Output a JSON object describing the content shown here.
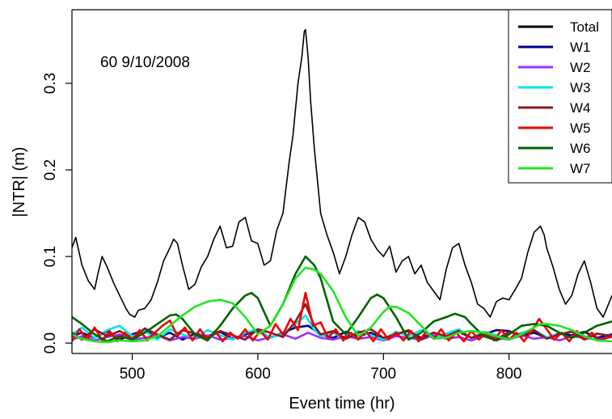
{
  "chart_data": {
    "type": "line",
    "annotation": "60 9/10/2008",
    "xlabel": "Event time (hr)",
    "ylabel": "|NTR| (m)",
    "xlim": [
      452,
      882
    ],
    "ylim": [
      -0.012,
      0.385
    ],
    "xticks": [
      500,
      600,
      700,
      800
    ],
    "xtick_labels": [
      "500",
      "600",
      "700",
      "800"
    ],
    "yticks": [
      0.0,
      0.1,
      0.2,
      0.3
    ],
    "ytick_labels": [
      "0.0",
      "0.1",
      "0.2",
      "0.3"
    ],
    "legend_position": "top-right",
    "series": [
      {
        "name": "Total",
        "color": "#000000",
        "x": [
          452,
          455,
          460,
          465,
          470,
          473,
          476,
          480,
          485,
          490,
          495,
          498,
          502,
          505,
          510,
          515,
          520,
          525,
          530,
          533,
          536,
          540,
          545,
          550,
          555,
          560,
          565,
          570,
          575,
          580,
          585,
          590,
          595,
          600,
          605,
          610,
          615,
          620,
          625,
          628,
          630,
          632,
          635,
          637,
          638,
          640,
          642,
          645,
          648,
          650,
          655,
          660,
          665,
          670,
          675,
          680,
          685,
          690,
          695,
          700,
          705,
          710,
          715,
          720,
          725,
          730,
          735,
          740,
          745,
          750,
          755,
          760,
          765,
          770,
          775,
          780,
          785,
          790,
          795,
          800,
          805,
          810,
          815,
          820,
          825,
          828,
          830,
          835,
          840,
          845,
          850,
          855,
          860,
          865,
          870,
          875,
          882
        ],
        "values": [
          0.11,
          0.122,
          0.09,
          0.072,
          0.062,
          0.082,
          0.1,
          0.088,
          0.07,
          0.055,
          0.04,
          0.033,
          0.03,
          0.038,
          0.04,
          0.05,
          0.07,
          0.095,
          0.11,
          0.12,
          0.115,
          0.09,
          0.062,
          0.068,
          0.088,
          0.1,
          0.12,
          0.135,
          0.11,
          0.112,
          0.14,
          0.145,
          0.118,
          0.115,
          0.09,
          0.095,
          0.13,
          0.15,
          0.21,
          0.24,
          0.27,
          0.3,
          0.33,
          0.36,
          0.362,
          0.33,
          0.28,
          0.225,
          0.18,
          0.15,
          0.125,
          0.105,
          0.08,
          0.1,
          0.125,
          0.145,
          0.14,
          0.12,
          0.108,
          0.1,
          0.112,
          0.082,
          0.095,
          0.1,
          0.08,
          0.09,
          0.07,
          0.06,
          0.05,
          0.085,
          0.11,
          0.115,
          0.09,
          0.07,
          0.045,
          0.04,
          0.03,
          0.048,
          0.052,
          0.05,
          0.062,
          0.075,
          0.105,
          0.128,
          0.135,
          0.125,
          0.11,
          0.088,
          0.062,
          0.045,
          0.055,
          0.08,
          0.095,
          0.07,
          0.04,
          0.03,
          0.055
        ]
      },
      {
        "name": "W1",
        "color": "#00008b",
        "x": [
          452,
          460,
          470,
          480,
          490,
          500,
          510,
          520,
          530,
          540,
          550,
          560,
          570,
          580,
          590,
          600,
          610,
          620,
          630,
          640,
          650,
          660,
          670,
          680,
          690,
          700,
          710,
          720,
          730,
          740,
          750,
          760,
          770,
          780,
          790,
          800,
          810,
          820,
          830,
          840,
          850,
          860,
          870,
          882
        ],
        "values": [
          0.008,
          0.012,
          0.006,
          0.014,
          0.004,
          0.01,
          0.015,
          0.006,
          0.012,
          0.004,
          0.011,
          0.008,
          0.013,
          0.005,
          0.01,
          0.014,
          0.006,
          0.012,
          0.018,
          0.02,
          0.01,
          0.006,
          0.013,
          0.008,
          0.012,
          0.005,
          0.01,
          0.014,
          0.006,
          0.012,
          0.008,
          0.013,
          0.006,
          0.01,
          0.015,
          0.014,
          0.008,
          0.012,
          0.006,
          0.011,
          0.009,
          0.013,
          0.006,
          0.01
        ]
      },
      {
        "name": "W2",
        "color": "#9b30ff",
        "x": [
          452,
          460,
          470,
          480,
          490,
          500,
          510,
          520,
          530,
          540,
          550,
          560,
          570,
          580,
          590,
          600,
          610,
          620,
          630,
          640,
          650,
          660,
          670,
          680,
          690,
          700,
          710,
          720,
          730,
          740,
          750,
          760,
          770,
          780,
          790,
          800,
          810,
          820,
          830,
          840,
          850,
          860,
          870,
          882
        ],
        "values": [
          0.004,
          0.008,
          0.003,
          0.007,
          0.01,
          0.004,
          0.006,
          0.009,
          0.003,
          0.007,
          0.005,
          0.009,
          0.004,
          0.006,
          0.008,
          0.003,
          0.007,
          0.01,
          0.005,
          0.012,
          0.006,
          0.004,
          0.008,
          0.005,
          0.007,
          0.003,
          0.008,
          0.006,
          0.004,
          0.009,
          0.005,
          0.007,
          0.003,
          0.008,
          0.006,
          0.004,
          0.009,
          0.005,
          0.007,
          0.003,
          0.008,
          0.006,
          0.004,
          0.007
        ]
      },
      {
        "name": "W3",
        "color": "#00e5ee",
        "x": [
          452,
          460,
          470,
          480,
          490,
          500,
          510,
          520,
          530,
          540,
          550,
          560,
          570,
          580,
          590,
          600,
          610,
          620,
          630,
          638,
          645,
          650,
          660,
          670,
          680,
          690,
          700,
          710,
          720,
          730,
          740,
          750,
          760,
          770,
          780,
          790,
          800,
          810,
          820,
          830,
          840,
          850,
          860,
          870,
          882
        ],
        "values": [
          0.01,
          0.018,
          0.006,
          0.015,
          0.02,
          0.008,
          0.014,
          0.004,
          0.016,
          0.01,
          0.006,
          0.015,
          0.009,
          0.004,
          0.012,
          0.016,
          0.006,
          0.011,
          0.022,
          0.032,
          0.015,
          0.008,
          0.012,
          0.005,
          0.014,
          0.009,
          0.004,
          0.013,
          0.008,
          0.015,
          0.005,
          0.011,
          0.016,
          0.006,
          0.013,
          0.009,
          0.004,
          0.012,
          0.015,
          0.007,
          0.01,
          0.014,
          0.005,
          0.011,
          0.008
        ]
      },
      {
        "name": "W4",
        "color": "#8b1a1a",
        "x": [
          452,
          460,
          470,
          480,
          490,
          500,
          510,
          520,
          530,
          540,
          550,
          560,
          570,
          580,
          590,
          600,
          610,
          620,
          630,
          638,
          645,
          650,
          660,
          670,
          680,
          690,
          700,
          710,
          720,
          730,
          740,
          750,
          760,
          770,
          780,
          790,
          800,
          810,
          820,
          830,
          840,
          850,
          860,
          870,
          882
        ],
        "values": [
          0.012,
          0.004,
          0.016,
          0.008,
          0.014,
          0.005,
          0.017,
          0.01,
          0.004,
          0.015,
          0.011,
          0.006,
          0.014,
          0.009,
          0.004,
          0.016,
          0.012,
          0.007,
          0.025,
          0.045,
          0.02,
          0.01,
          0.014,
          0.005,
          0.012,
          0.016,
          0.006,
          0.01,
          0.015,
          0.004,
          0.012,
          0.008,
          0.014,
          0.006,
          0.011,
          0.004,
          0.013,
          0.009,
          0.015,
          0.005,
          0.01,
          0.013,
          0.004,
          0.011,
          0.008
        ]
      },
      {
        "name": "W5",
        "color": "#ee0000",
        "x": [
          452,
          458,
          464,
          470,
          476,
          482,
          488,
          494,
          500,
          506,
          512,
          518,
          524,
          530,
          536,
          542,
          548,
          554,
          560,
          566,
          572,
          578,
          584,
          590,
          596,
          602,
          608,
          614,
          620,
          626,
          632,
          638,
          644,
          650,
          656,
          662,
          668,
          674,
          680,
          686,
          692,
          698,
          704,
          710,
          716,
          722,
          728,
          734,
          740,
          746,
          752,
          758,
          764,
          770,
          776,
          782,
          788,
          794,
          800,
          806,
          812,
          818,
          824,
          830,
          836,
          842,
          848,
          854,
          860,
          866,
          872,
          882
        ],
        "values": [
          0.002,
          0.016,
          0.004,
          0.018,
          0.003,
          0.014,
          0.002,
          0.012,
          0.004,
          0.015,
          0.003,
          0.012,
          0.02,
          0.026,
          0.008,
          0.018,
          0.003,
          0.016,
          0.004,
          0.014,
          0.002,
          0.012,
          0.005,
          0.016,
          0.003,
          0.014,
          0.004,
          0.022,
          0.01,
          0.028,
          0.015,
          0.058,
          0.02,
          0.024,
          0.006,
          0.016,
          0.003,
          0.012,
          0.004,
          0.014,
          0.002,
          0.016,
          0.004,
          0.012,
          0.003,
          0.014,
          0.002,
          0.013,
          0.005,
          0.016,
          0.003,
          0.012,
          0.002,
          0.014,
          0.004,
          0.012,
          0.003,
          0.015,
          0.004,
          0.012,
          0.002,
          0.014,
          0.028,
          0.016,
          0.004,
          0.012,
          0.002,
          0.014,
          0.004,
          0.012,
          0.003,
          0.008
        ]
      },
      {
        "name": "W6",
        "color": "#006400",
        "x": [
          452,
          460,
          470,
          480,
          490,
          500,
          510,
          520,
          530,
          535,
          540,
          550,
          560,
          570,
          580,
          590,
          595,
          600,
          610,
          620,
          630,
          638,
          645,
          650,
          660,
          670,
          680,
          690,
          695,
          700,
          710,
          720,
          730,
          740,
          750,
          757,
          765,
          770,
          780,
          790,
          800,
          810,
          820,
          830,
          840,
          850,
          860,
          870,
          882
        ],
        "values": [
          0.03,
          0.022,
          0.01,
          0.002,
          0.008,
          0.004,
          0.012,
          0.022,
          0.032,
          0.033,
          0.028,
          0.01,
          0.003,
          0.02,
          0.04,
          0.055,
          0.058,
          0.052,
          0.02,
          0.045,
          0.08,
          0.1,
          0.09,
          0.075,
          0.025,
          0.01,
          0.03,
          0.052,
          0.056,
          0.052,
          0.03,
          0.004,
          0.012,
          0.025,
          0.03,
          0.034,
          0.03,
          0.022,
          0.008,
          0.003,
          0.01,
          0.02,
          0.022,
          0.02,
          0.012,
          0.006,
          0.012,
          0.02,
          0.025
        ]
      },
      {
        "name": "W7",
        "color": "#22e522",
        "x": [
          452,
          460,
          470,
          480,
          490,
          500,
          510,
          520,
          530,
          540,
          550,
          560,
          570,
          580,
          590,
          600,
          610,
          620,
          630,
          638,
          645,
          650,
          660,
          670,
          680,
          690,
          700,
          705,
          710,
          720,
          730,
          740,
          750,
          760,
          770,
          780,
          790,
          800,
          810,
          820,
          825,
          830,
          840,
          850,
          860,
          870,
          882
        ],
        "values": [
          0.01,
          0.005,
          0.002,
          0.001,
          0.003,
          0.002,
          0.003,
          0.008,
          0.02,
          0.032,
          0.042,
          0.048,
          0.05,
          0.046,
          0.03,
          0.01,
          0.02,
          0.045,
          0.075,
          0.087,
          0.085,
          0.08,
          0.06,
          0.03,
          0.008,
          0.018,
          0.036,
          0.042,
          0.042,
          0.035,
          0.02,
          0.005,
          0.006,
          0.012,
          0.014,
          0.012,
          0.008,
          0.004,
          0.01,
          0.018,
          0.022,
          0.022,
          0.02,
          0.015,
          0.008,
          0.003,
          0.002
        ]
      }
    ]
  }
}
